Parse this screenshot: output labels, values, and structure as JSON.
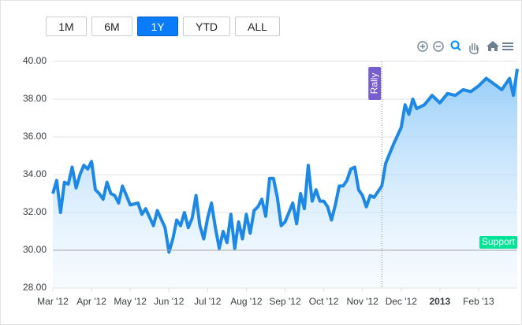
{
  "range_selector": {
    "buttons": [
      "1M",
      "6M",
      "1Y",
      "YTD",
      "ALL"
    ],
    "selected": 2
  },
  "chart_data": {
    "type": "area",
    "color": "#1e88e5",
    "x": [
      0.0,
      0.1,
      0.2,
      0.3,
      0.4,
      0.5,
      0.6,
      0.7,
      0.8,
      0.9,
      1.0,
      1.1,
      1.2,
      1.3,
      1.4,
      1.5,
      1.6,
      1.7,
      1.8,
      1.9,
      2.0,
      2.2,
      2.3,
      2.4,
      2.6,
      2.7,
      2.9,
      3.0,
      3.1,
      3.2,
      3.3,
      3.4,
      3.5,
      3.6,
      3.7,
      3.8,
      3.9,
      4.0,
      4.1,
      4.2,
      4.3,
      4.4,
      4.5,
      4.6,
      4.7,
      4.8,
      4.9,
      5.0,
      5.1,
      5.2,
      5.3,
      5.4,
      5.5,
      5.6,
      5.7,
      5.8,
      5.9,
      6.0,
      6.1,
      6.2,
      6.3,
      6.4,
      6.5,
      6.6,
      6.7,
      6.8,
      6.9,
      7.0,
      7.1,
      7.2,
      7.3,
      7.4,
      7.5,
      7.6,
      7.7,
      7.8,
      7.9,
      8.0,
      8.1,
      8.2,
      8.3,
      8.5,
      8.6,
      8.8,
      9.0,
      9.1,
      9.2,
      9.3,
      9.4,
      9.6,
      9.8,
      10.0,
      10.2,
      10.4,
      10.6,
      10.8,
      11.0,
      11.2,
      11.4,
      11.6,
      11.8,
      11.9,
      12.0
    ],
    "values": [
      33.0,
      33.7,
      32.0,
      33.6,
      33.5,
      34.4,
      33.3,
      34.0,
      34.5,
      34.3,
      34.7,
      33.2,
      33.0,
      32.7,
      33.6,
      33.0,
      32.9,
      32.5,
      33.4,
      32.9,
      32.4,
      32.5,
      31.9,
      32.2,
      31.3,
      32.1,
      31.2,
      29.9,
      30.6,
      31.6,
      31.3,
      32.0,
      31.2,
      31.7,
      32.9,
      31.3,
      30.6,
      31.7,
      32.5,
      31.2,
      30.1,
      31.0,
      30.4,
      31.9,
      30.1,
      31.5,
      30.6,
      31.9,
      30.9,
      32.1,
      32.3,
      32.7,
      31.8,
      33.8,
      33.8,
      32.8,
      31.3,
      31.5,
      32.0,
      32.5,
      31.4,
      33.0,
      32.2,
      34.5,
      32.6,
      33.2,
      32.6,
      32.6,
      32.3,
      31.6,
      32.4,
      33.4,
      33.4,
      33.7,
      34.3,
      34.4,
      33.2,
      32.9,
      32.3,
      32.9,
      32.8,
      33.4,
      34.6,
      35.6,
      36.5,
      37.7,
      37.2,
      38.0,
      37.5,
      37.7,
      38.2,
      37.8,
      38.3,
      38.2,
      38.5,
      38.4,
      38.7,
      39.1,
      38.8,
      38.5,
      39.1,
      38.2,
      39.6
    ],
    "xlim": [
      0,
      12
    ],
    "xticks": [
      {
        "value": 0,
        "label": "Mar '12"
      },
      {
        "value": 1,
        "label": "Apr '12"
      },
      {
        "value": 2,
        "label": "May '12"
      },
      {
        "value": 3,
        "label": "Jun '12"
      },
      {
        "value": 4,
        "label": "Jul '12"
      },
      {
        "value": 5,
        "label": "Aug '12"
      },
      {
        "value": 6,
        "label": "Sep '12"
      },
      {
        "value": 7,
        "label": "Oct '12"
      },
      {
        "value": 8,
        "label": "Nov '12"
      },
      {
        "value": 9,
        "label": "Dec '12"
      },
      {
        "value": 10,
        "label": "2013"
      },
      {
        "value": 11,
        "label": "Feb '13"
      }
    ],
    "ylim": [
      28,
      40
    ],
    "yticks": [
      {
        "value": 28,
        "label": "28.00"
      },
      {
        "value": 30,
        "label": "30.00"
      },
      {
        "value": 32,
        "label": "32.00"
      },
      {
        "value": 34,
        "label": "34.00"
      },
      {
        "value": 36,
        "label": "36.00"
      },
      {
        "value": 38,
        "label": "38.00"
      },
      {
        "value": 40,
        "label": "40.00"
      }
    ],
    "grid": true,
    "x_annotations": [
      {
        "x": 8.5,
        "label": "Rally",
        "color": "#775dd0"
      }
    ],
    "y_annotations": [
      {
        "y": 30,
        "label": "Support",
        "color": "#00e396"
      }
    ]
  }
}
